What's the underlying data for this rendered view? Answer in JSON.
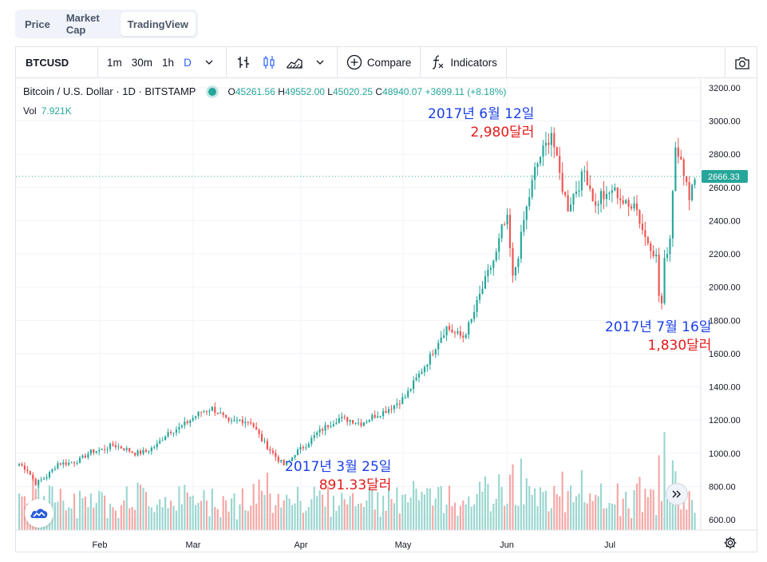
{
  "tabs": [
    {
      "label": "Price",
      "active": false
    },
    {
      "label": "Market Cap",
      "active": false
    },
    {
      "label": "TradingView",
      "active": true
    }
  ],
  "toolbar": {
    "symbol": "BTCUSD",
    "intervals": [
      "1m",
      "30m",
      "1h",
      "D"
    ],
    "selected_interval": "D",
    "compare_label": "Compare",
    "indicators_label": "Indicators"
  },
  "legend": {
    "title": "Bitcoin / U.S. Dollar · 1D · BITSTAMP",
    "open_label": "O",
    "open": "45261.56",
    "high_label": "H",
    "high": "49552.00",
    "low_label": "L",
    "low": "45020.25",
    "close_label": "C",
    "close": "48940.07",
    "change": "+3699.11 (+8.18%)",
    "vol_label": "Vol",
    "vol_value": "7.921K"
  },
  "price_axis": {
    "labels": [
      "3200.00",
      "3000.00",
      "2800.00",
      "2600.00",
      "2400.00",
      "2200.00",
      "2000.00",
      "1800.00",
      "1600.00",
      "1400.00",
      "1200.00",
      "1000.00",
      "800.00",
      "600.00"
    ],
    "current_price_tag": "2666.33"
  },
  "time_axis": {
    "labels": [
      "Feb",
      "Mar",
      "Apr",
      "May",
      "Jun",
      "Jul"
    ]
  },
  "annotations": [
    {
      "date": "2017년 6월 12일",
      "price": "2,980달러"
    },
    {
      "date": "2017년 7월 16일",
      "price": "1,830달러"
    },
    {
      "date": "2017년 3월 25일",
      "price": "891.33달러"
    }
  ],
  "colors": {
    "up": "#26a69a",
    "down": "#ef5350",
    "vol_up": "#9ad6cf",
    "vol_down": "#f4a7a5",
    "price_tag": "#26a69a",
    "annotation_date": "#1a3ee8",
    "annotation_price": "#e41a1a"
  },
  "chart_data": {
    "type": "candlestick",
    "ylim": [
      580,
      3240
    ],
    "keypoints": [
      [
        0,
        935
      ],
      [
        3,
        900
      ],
      [
        6,
        820
      ],
      [
        10,
        860
      ],
      [
        14,
        940
      ],
      [
        18,
        940
      ],
      [
        22,
        960
      ],
      [
        26,
        1010
      ],
      [
        30,
        1020
      ],
      [
        34,
        1050
      ],
      [
        38,
        1030
      ],
      [
        42,
        1000
      ],
      [
        46,
        1010
      ],
      [
        50,
        1050
      ],
      [
        54,
        1130
      ],
      [
        58,
        1150
      ],
      [
        62,
        1200
      ],
      [
        66,
        1250
      ],
      [
        70,
        1270
      ],
      [
        73,
        1235
      ],
      [
        76,
        1180
      ],
      [
        80,
        1200
      ],
      [
        84,
        1190
      ],
      [
        88,
        1080
      ],
      [
        91,
        1020
      ],
      [
        94,
        960
      ],
      [
        96,
        930
      ],
      [
        98,
        950
      ],
      [
        100,
        1000
      ],
      [
        104,
        1050
      ],
      [
        108,
        1120
      ],
      [
        112,
        1170
      ],
      [
        116,
        1210
      ],
      [
        120,
        1200
      ],
      [
        124,
        1180
      ],
      [
        128,
        1220
      ],
      [
        132,
        1250
      ],
      [
        136,
        1290
      ],
      [
        140,
        1340
      ],
      [
        143,
        1420
      ],
      [
        146,
        1500
      ],
      [
        149,
        1580
      ],
      [
        152,
        1680
      ],
      [
        155,
        1760
      ],
      [
        158,
        1720
      ],
      [
        161,
        1700
      ],
      [
        164,
        1800
      ],
      [
        167,
        1950
      ],
      [
        170,
        2080
      ],
      [
        173,
        2200
      ],
      [
        175,
        2350
      ],
      [
        177,
        2400
      ],
      [
        179,
        2050
      ],
      [
        181,
        2200
      ],
      [
        183,
        2400
      ],
      [
        185,
        2550
      ],
      [
        187,
        2700
      ],
      [
        189,
        2790
      ],
      [
        191,
        2850
      ],
      [
        193,
        2940
      ],
      [
        195,
        2750
      ],
      [
        197,
        2600
      ],
      [
        199,
        2480
      ],
      [
        201,
        2560
      ],
      [
        203,
        2620
      ],
      [
        205,
        2700
      ],
      [
        207,
        2600
      ],
      [
        209,
        2480
      ],
      [
        211,
        2560
      ],
      [
        213,
        2530
      ],
      [
        215,
        2590
      ],
      [
        217,
        2560
      ],
      [
        219,
        2510
      ],
      [
        221,
        2480
      ],
      [
        223,
        2530
      ],
      [
        225,
        2400
      ],
      [
        227,
        2300
      ],
      [
        229,
        2250
      ],
      [
        231,
        2180
      ],
      [
        232,
        1950
      ],
      [
        233,
        1900
      ],
      [
        234,
        2150
      ],
      [
        236,
        2300
      ],
      [
        237,
        2600
      ],
      [
        238,
        2850
      ],
      [
        240,
        2800
      ],
      [
        241,
        2650
      ],
      [
        243,
        2560
      ],
      [
        245,
        2666
      ]
    ],
    "count": 246,
    "source": "Bitstamp BTC/USD daily, Jan–Jul 2017"
  }
}
